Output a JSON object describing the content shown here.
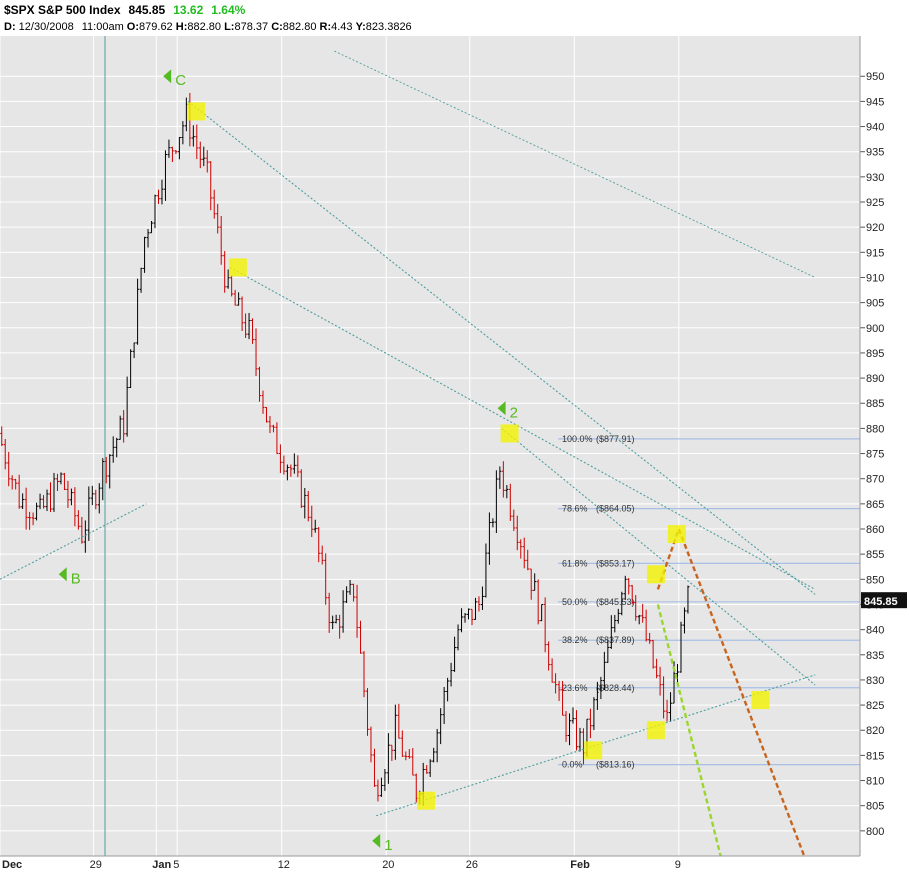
{
  "header": {
    "symbol": "$SPX",
    "name": "S&P 500 Index",
    "last": "845.85",
    "change": "13.62",
    "change_pct": "1.64%",
    "date_label": "D:",
    "date": "12/30/2008",
    "time": "11:00am",
    "open_label": "O:",
    "open": "879.62",
    "high_label": "H:",
    "high": "882.80",
    "low_label": "L:",
    "low": "878.37",
    "close_label": "C:",
    "close": "882.80",
    "range_label": "R:",
    "range": "4.43",
    "y_label": "Y:",
    "y": "823.3826"
  },
  "colors": {
    "background": "#e6e6e6",
    "bull_candle": "#000000",
    "bear_candle": "#cc0000",
    "trendline": "#4d9e9e",
    "fib_line": "#a8bfe6",
    "wave_label": "#55bb22",
    "marker": "#f2f200",
    "projection_orange": "#c8641e",
    "projection_green": "#99d62e",
    "price_tag": "#111111"
  },
  "chart_data": {
    "type": "candlestick",
    "interval": "hourly",
    "y_axis_range": [
      795,
      958
    ],
    "y_ticks": [
      "800",
      "805",
      "810",
      "815",
      "820",
      "825",
      "830",
      "835",
      "840",
      "845",
      "850",
      "855",
      "860",
      "865",
      "870",
      "875",
      "880",
      "885",
      "890",
      "895",
      "900",
      "905",
      "910",
      "915",
      "920",
      "925",
      "930",
      "935",
      "940",
      "945",
      "950"
    ],
    "x_ticks": [
      "Dec",
      "29",
      "Jan",
      "5",
      "12",
      "20",
      "26",
      "Feb",
      "9"
    ],
    "current_price": "845.85",
    "grid": true,
    "wave_labels": [
      {
        "label": "C",
        "date": "Jan 5",
        "price": 950
      },
      {
        "label": "B",
        "date": "Dec 26",
        "price": 851
      },
      {
        "label": "1",
        "date": "Jan 20",
        "price": 798
      },
      {
        "label": "2",
        "date": "Jan 28",
        "price": 884
      }
    ],
    "fibonacci_levels": [
      {
        "label": "100.0%",
        "value": "($877.91)",
        "price": 877.91
      },
      {
        "label": "78.6%",
        "value": "($864.05)",
        "price": 864.05
      },
      {
        "label": "61.8%",
        "value": "($853.17)",
        "price": 853.17
      },
      {
        "label": "50.0%",
        "value": "($845.53)",
        "price": 845.53
      },
      {
        "label": "38.2%",
        "value": "($837.89)",
        "price": 837.89
      },
      {
        "label": "23.6%",
        "value": "($828.44)",
        "price": 828.44
      },
      {
        "label": "0.0%",
        "value": "($813.16)",
        "price": 813.16
      }
    ],
    "price_path": [
      {
        "date": "Dec 22",
        "price": 879
      },
      {
        "date": "Dec 23",
        "price": 866
      },
      {
        "date": "Dec 24",
        "price": 863
      },
      {
        "date": "Dec 26",
        "price": 870
      },
      {
        "date": "Dec 29",
        "price": 859
      },
      {
        "date": "Dec 30",
        "price": 872
      },
      {
        "date": "Dec 31",
        "price": 881
      },
      {
        "date": "Jan 2",
        "price": 918
      },
      {
        "date": "Jan 5",
        "price": 933
      },
      {
        "date": "Jan 6",
        "price": 942
      },
      {
        "date": "Jan 7",
        "price": 930
      },
      {
        "date": "Jan 8",
        "price": 907
      },
      {
        "date": "Jan 9",
        "price": 899
      },
      {
        "date": "Jan 12",
        "price": 879
      },
      {
        "date": "Jan 13",
        "price": 872
      },
      {
        "date": "Jan 14",
        "price": 862
      },
      {
        "date": "Jan 15",
        "price": 840
      },
      {
        "date": "Jan 16",
        "price": 848
      },
      {
        "date": "Jan 20",
        "price": 808
      },
      {
        "date": "Jan 21",
        "price": 820
      },
      {
        "date": "Jan 22",
        "price": 808
      },
      {
        "date": "Jan 23",
        "price": 820
      },
      {
        "date": "Jan 26",
        "price": 840
      },
      {
        "date": "Jan 27",
        "price": 845
      },
      {
        "date": "Jan 28",
        "price": 872
      },
      {
        "date": "Jan 29",
        "price": 858
      },
      {
        "date": "Jan 30",
        "price": 842
      },
      {
        "date": "Feb 2",
        "price": 822
      },
      {
        "date": "Feb 3",
        "price": 817
      },
      {
        "date": "Feb 4",
        "price": 832
      },
      {
        "date": "Feb 5",
        "price": 852
      },
      {
        "date": "Feb 6",
        "price": 838
      },
      {
        "date": "Feb 9",
        "price": 822
      },
      {
        "date": "Feb 10",
        "price": 846
      }
    ],
    "trendlines": [
      {
        "name": "upper-channel",
        "from": {
          "date": "Jan 6",
          "price": 945
        },
        "to": {
          "date": "Feb 19",
          "price": 847
        }
      },
      {
        "name": "inner-channel",
        "from": {
          "date": "Jan 8",
          "price": 912
        },
        "to": {
          "date": "Feb 19",
          "price": 848
        }
      },
      {
        "name": "steep-channel",
        "from": {
          "date": "Jan 28",
          "price": 880
        },
        "to": {
          "date": "Feb 19",
          "price": 829
        }
      },
      {
        "name": "lower-support",
        "from": {
          "date": "Jan 20",
          "price": 803
        },
        "to": {
          "date": "Feb 19",
          "price": 831
        }
      },
      {
        "name": "dec-support",
        "from": {
          "date": "Dec 22",
          "price": 850
        },
        "to": {
          "date": "Jan 2",
          "price": 865
        }
      },
      {
        "name": "outer-upper",
        "from": {
          "date": "Jan 15",
          "price": 955
        },
        "to": {
          "date": "Feb 19",
          "price": 910
        }
      }
    ],
    "highlight_markers": [
      {
        "date": "Jan 6",
        "price": 943
      },
      {
        "date": "Jan 8",
        "price": 912
      },
      {
        "date": "Jan 22",
        "price": 806
      },
      {
        "date": "Jan 28",
        "price": 879
      },
      {
        "date": "Feb 3",
        "price": 816
      },
      {
        "date": "Feb 6",
        "price": 820
      },
      {
        "date": "Feb 6",
        "price": 851
      },
      {
        "date": "Feb 9",
        "price": 859
      },
      {
        "date": "Feb 13",
        "price": 826
      }
    ],
    "projections": [
      {
        "color": "orange",
        "points": [
          {
            "date": "Feb 6",
            "price": 848
          },
          {
            "date": "Feb 9",
            "price": 860
          },
          {
            "date": "Feb 18",
            "price": 795
          }
        ]
      },
      {
        "color": "green",
        "points": [
          {
            "date": "Feb 6",
            "price": 845
          },
          {
            "date": "Feb 11",
            "price": 795
          }
        ]
      }
    ]
  }
}
